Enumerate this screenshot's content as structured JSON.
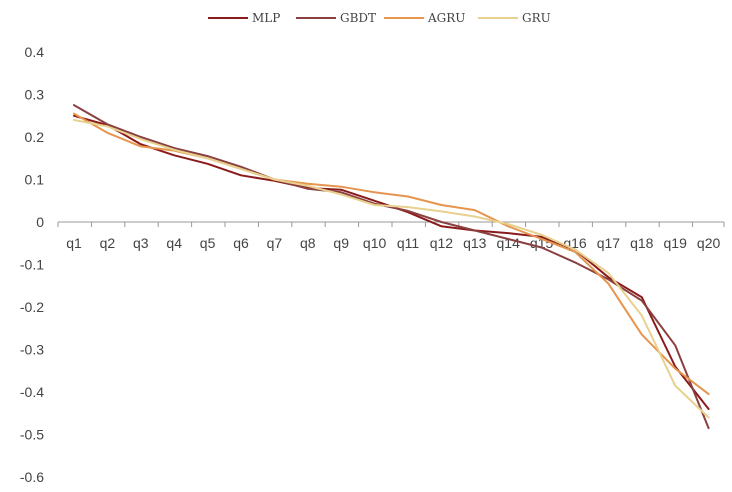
{
  "chart_data": {
    "type": "line",
    "title": "",
    "xlabel": "",
    "ylabel": "",
    "categories": [
      "q1",
      "q2",
      "q3",
      "q4",
      "q5",
      "q6",
      "q7",
      "q8",
      "q9",
      "q10",
      "q11",
      "q12",
      "q13",
      "q14",
      "q15",
      "q16",
      "q17",
      "q18",
      "q19",
      "q20"
    ],
    "ylim": [
      -0.6,
      0.4
    ],
    "yticks": [
      {
        "value": 0.4,
        "label": "0.4"
      },
      {
        "value": 0.3,
        "label": "0.3"
      },
      {
        "value": 0.2,
        "label": "0.2"
      },
      {
        "value": 0.1,
        "label": "0.1"
      },
      {
        "value": 0,
        "label": "0"
      },
      {
        "value": -0.1,
        "label": "-0.1"
      },
      {
        "value": -0.2,
        "label": "-0.2"
      },
      {
        "value": -0.3,
        "label": "-0.3"
      },
      {
        "value": -0.4,
        "label": "-0.4"
      },
      {
        "value": -0.5,
        "label": "-0.5"
      },
      {
        "value": -0.6,
        "label": "-0.6"
      }
    ],
    "grid": false,
    "legend_position": "top-center",
    "series": [
      {
        "name": "MLP",
        "color": "#8B1A1A",
        "values": [
          0.25,
          0.228,
          0.183,
          0.157,
          0.137,
          0.11,
          0.097,
          0.08,
          0.076,
          0.05,
          0.023,
          -0.01,
          -0.02,
          -0.026,
          -0.035,
          -0.065,
          -0.13,
          -0.177,
          -0.34,
          -0.44
        ]
      },
      {
        "name": "GBDT",
        "color": "#8B4040",
        "values": [
          0.275,
          0.23,
          0.2,
          0.174,
          0.155,
          0.13,
          0.1,
          0.078,
          0.07,
          0.043,
          0.026,
          0.0,
          -0.02,
          -0.04,
          -0.06,
          -0.095,
          -0.135,
          -0.185,
          -0.29,
          -0.485
        ]
      },
      {
        "name": "AGRU",
        "color": "#E5954D",
        "values": [
          0.255,
          0.21,
          0.178,
          0.168,
          0.15,
          0.125,
          0.1,
          0.09,
          0.083,
          0.07,
          0.06,
          0.04,
          0.028,
          -0.01,
          -0.04,
          -0.07,
          -0.145,
          -0.265,
          -0.345,
          -0.405
        ]
      },
      {
        "name": "GRU",
        "color": "#E8D08E",
        "values": [
          0.24,
          0.225,
          0.195,
          0.17,
          0.15,
          0.125,
          0.1,
          0.085,
          0.065,
          0.04,
          0.035,
          0.025,
          0.013,
          -0.005,
          -0.03,
          -0.065,
          -0.12,
          -0.22,
          -0.385,
          -0.46
        ]
      }
    ]
  }
}
